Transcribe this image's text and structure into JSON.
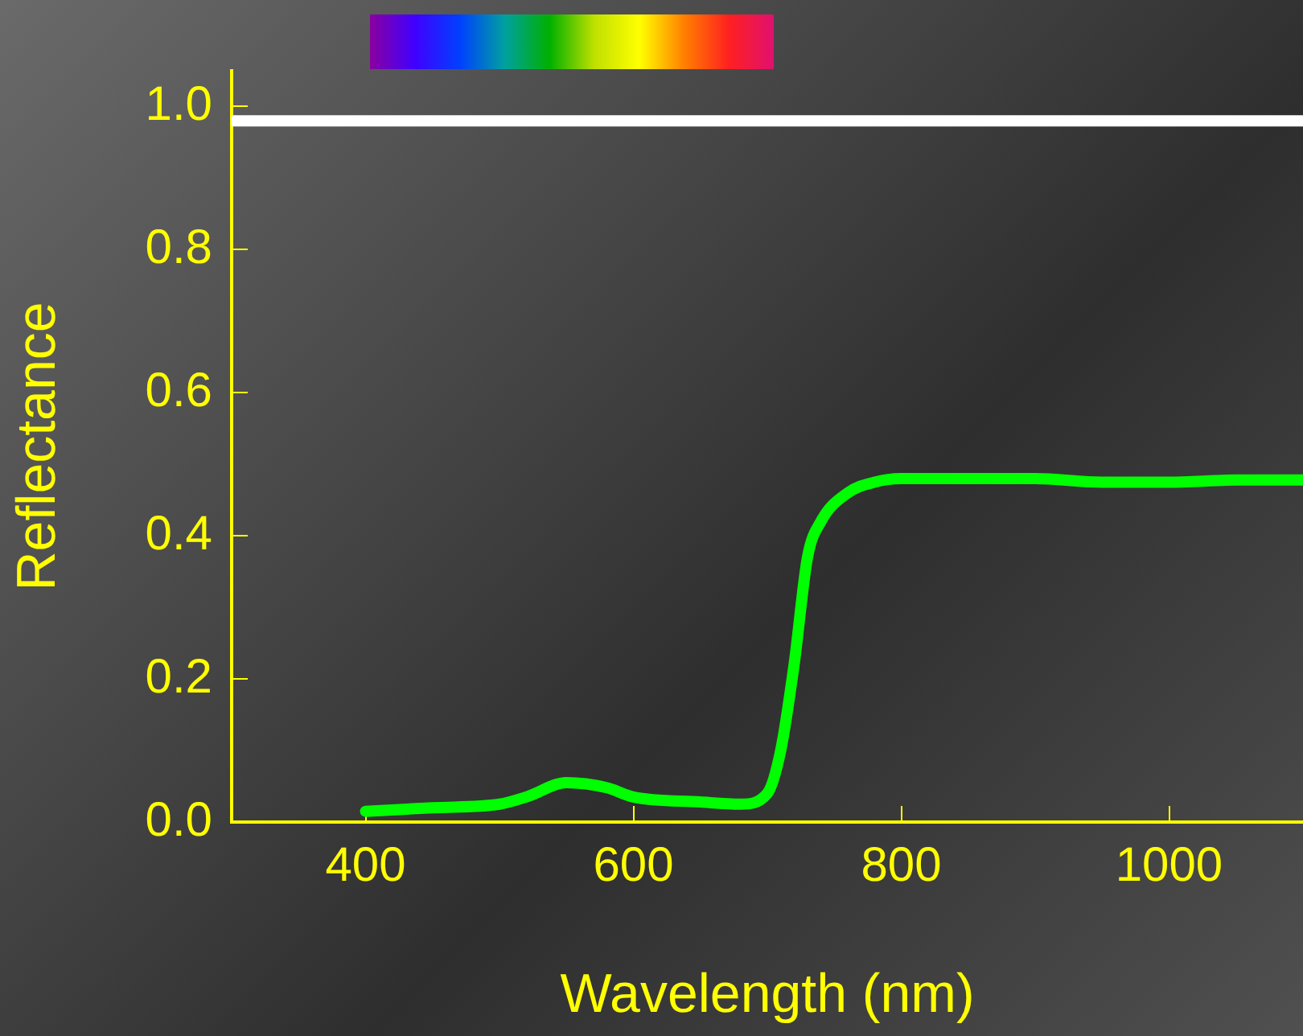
{
  "chart_data": {
    "type": "line",
    "xlabel": "Wavelength (nm)",
    "ylabel": "Reflectance",
    "xlim": [
      300,
      1100
    ],
    "ylim": [
      0,
      1.05
    ],
    "xticks": [
      400,
      600,
      800,
      1000
    ],
    "yticks": [
      {
        "value": 0,
        "label": "0.0"
      },
      {
        "value": 0.2,
        "label": "0.2"
      },
      {
        "value": 0.4,
        "label": "0.4"
      },
      {
        "value": 0.6,
        "label": "0.6"
      },
      {
        "value": 0.8,
        "label": "0.8"
      },
      {
        "value": 1,
        "label": "1.0"
      }
    ],
    "grid": false,
    "legend": false,
    "marker": "none",
    "line_style": "solid",
    "ref_lines": [
      {
        "axis": "y",
        "value": 0.98,
        "color": "#ffffff"
      }
    ],
    "series": [
      {
        "color": "#00ff00",
        "x": [
          400,
          450,
          500,
          520,
          550,
          580,
          600,
          650,
          680,
          700,
          710,
          720,
          730,
          740,
          760,
          780,
          800,
          900,
          950,
          1000,
          1050,
          1100
        ],
        "values": [
          0.015,
          0.02,
          0.025,
          0.035,
          0.055,
          0.048,
          0.035,
          0.028,
          0.025,
          0.04,
          0.1,
          0.22,
          0.37,
          0.42,
          0.46,
          0.475,
          0.48,
          0.48,
          0.475,
          0.475,
          0.478,
          0.478
        ]
      }
    ]
  }
}
